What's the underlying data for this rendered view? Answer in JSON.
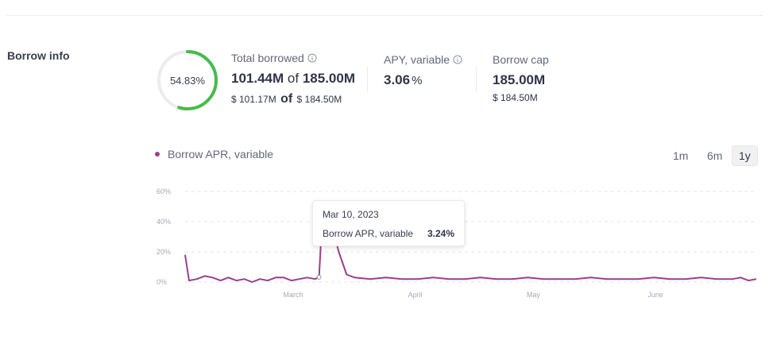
{
  "section_title": "Borrow info",
  "utilization": {
    "percent_label": "54.83%",
    "fraction": 0.5483,
    "color": "#46bc4b"
  },
  "total_borrowed": {
    "label": "Total borrowed",
    "amount": "101.44M",
    "of_word": "of",
    "cap": "185.00M",
    "usd_amount": "$ 101.17M",
    "usd_cap": "$ 184.50M"
  },
  "apy": {
    "label": "APY, variable",
    "value": "3.06",
    "unit": "%"
  },
  "borrow_cap": {
    "label": "Borrow cap",
    "value": "185.00M",
    "usd": "$ 184.50M"
  },
  "legend": {
    "series_name": "Borrow APR, variable",
    "color": "#9c3f8d"
  },
  "ranges": [
    {
      "label": "1m",
      "active": false
    },
    {
      "label": "6m",
      "active": false
    },
    {
      "label": "1y",
      "active": true
    }
  ],
  "tooltip": {
    "date": "Mar 10, 2023",
    "series": "Borrow APR, variable",
    "value": "3.24%"
  },
  "chart_data": {
    "type": "line",
    "series": [
      {
        "name": "Borrow APR, variable",
        "color": "#9c3f8d",
        "points": [
          [
            "2023-02-04",
            18
          ],
          [
            "2023-02-05",
            1
          ],
          [
            "2023-02-07",
            2
          ],
          [
            "2023-02-09",
            4
          ],
          [
            "2023-02-11",
            3
          ],
          [
            "2023-02-13",
            1
          ],
          [
            "2023-02-15",
            3
          ],
          [
            "2023-02-17",
            1
          ],
          [
            "2023-02-19",
            2
          ],
          [
            "2023-02-21",
            0
          ],
          [
            "2023-02-23",
            2
          ],
          [
            "2023-02-25",
            1
          ],
          [
            "2023-02-27",
            3
          ],
          [
            "2023-03-01",
            3
          ],
          [
            "2023-03-03",
            1
          ],
          [
            "2023-03-05",
            2
          ],
          [
            "2023-03-07",
            3
          ],
          [
            "2023-03-09",
            2
          ],
          [
            "2023-03-10",
            3.24
          ],
          [
            "2023-03-11",
            52
          ],
          [
            "2023-03-13",
            40
          ],
          [
            "2023-03-15",
            20
          ],
          [
            "2023-03-17",
            5
          ],
          [
            "2023-03-19",
            3
          ],
          [
            "2023-03-23",
            2
          ],
          [
            "2023-03-27",
            3
          ],
          [
            "2023-03-31",
            2
          ],
          [
            "2023-04-04",
            2
          ],
          [
            "2023-04-08",
            3
          ],
          [
            "2023-04-12",
            2
          ],
          [
            "2023-04-16",
            2
          ],
          [
            "2023-04-20",
            3
          ],
          [
            "2023-04-24",
            2
          ],
          [
            "2023-04-28",
            2
          ],
          [
            "2023-05-02",
            3
          ],
          [
            "2023-05-06",
            2
          ],
          [
            "2023-05-10",
            2
          ],
          [
            "2023-05-14",
            2
          ],
          [
            "2023-05-18",
            3
          ],
          [
            "2023-05-22",
            2
          ],
          [
            "2023-05-26",
            2
          ],
          [
            "2023-05-30",
            2
          ],
          [
            "2023-06-03",
            3
          ],
          [
            "2023-06-07",
            2
          ],
          [
            "2023-06-11",
            2
          ],
          [
            "2023-06-15",
            3
          ],
          [
            "2023-06-19",
            2
          ],
          [
            "2023-06-23",
            2
          ],
          [
            "2023-06-25",
            3
          ],
          [
            "2023-06-27",
            1
          ],
          [
            "2023-06-29",
            2
          ]
        ]
      }
    ],
    "ylim": [
      0,
      60
    ],
    "y_ticks": [
      0,
      20,
      40,
      60
    ],
    "y_tick_labels": [
      "0%",
      "20%",
      "40%",
      "60%"
    ],
    "x_ticks": [
      "2023-03-01",
      "2023-04-01",
      "2023-05-01",
      "2023-06-01"
    ],
    "x_tick_labels": [
      "March",
      "April",
      "May",
      "June"
    ],
    "x_range": [
      "2023-02-04",
      "2023-06-29"
    ],
    "grid": "dashed horizontal",
    "highlight_point": [
      "2023-03-10",
      3.24
    ]
  }
}
